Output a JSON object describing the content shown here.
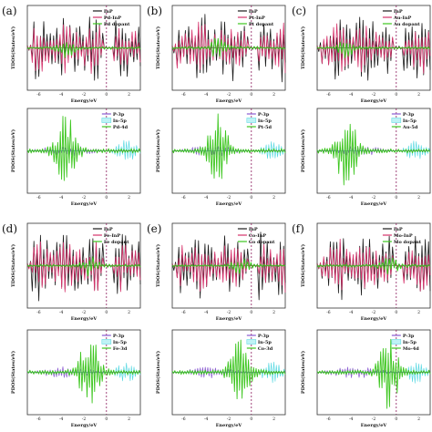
{
  "colors": {
    "black": "#1a1a1a",
    "pink": "#d6336c",
    "green": "#3cc61e",
    "purple": "#8a5ad1",
    "cyan": "#4fd6e0",
    "cyanFill": "#bff2f5",
    "dash": "#8b1a5c"
  },
  "common": {
    "tdos_ylabel": "TDOS(States/eV)",
    "pdos_ylabel": "PDOS(States/eV)",
    "xlabel": "Energy/eV",
    "xticks": [
      "-6",
      "-4",
      "-2",
      "0",
      "2"
    ]
  },
  "panels": [
    {
      "letter": "(a)",
      "tdos_legend": [
        "InP",
        "Pd-InP",
        "Pd dopant"
      ],
      "pdos_legend": [
        "P-3p",
        "In-5p",
        "Pd-4d"
      ],
      "chart_data": {
        "type": "line",
        "peak_positions_eV": {
          "dopant": -3.6
        },
        "xlim": [
          -7,
          3
        ]
      }
    },
    {
      "letter": "(b)",
      "tdos_legend": [
        "InP",
        "Pt-InP",
        "Pt dopant"
      ],
      "pdos_legend": [
        "P-3p",
        "In-5p",
        "Pt-5d"
      ],
      "chart_data": {
        "type": "line",
        "peak_positions_eV": {
          "dopant": -3.0
        },
        "xlim": [
          -7,
          3
        ]
      }
    },
    {
      "letter": "(c)",
      "tdos_legend": [
        "InP",
        "Au-InP",
        "Au dopant"
      ],
      "pdos_legend": [
        "P-3p",
        "In-5p",
        "Au-5d"
      ],
      "chart_data": {
        "type": "line",
        "peak_positions_eV": {
          "dopant": -4.4
        },
        "xlim": [
          -7,
          3
        ]
      }
    },
    {
      "letter": "(d)",
      "tdos_legend": [
        "InP",
        "Fe-InP",
        "Fe dopant"
      ],
      "pdos_legend": [
        "P-3p",
        "In-5p",
        "Fe-3d"
      ],
      "chart_data": {
        "type": "line",
        "peak_positions_eV": {
          "dopant": -1.5
        },
        "xlim": [
          -7,
          3
        ]
      }
    },
    {
      "letter": "(e)",
      "tdos_legend": [
        "InP",
        "Co-InP",
        "Co dopant"
      ],
      "pdos_legend": [
        "P-3p",
        "In-5p",
        "Co-3d"
      ],
      "chart_data": {
        "type": "line",
        "peak_positions_eV": {
          "dopant": -1.0
        },
        "xlim": [
          -7,
          3
        ]
      }
    },
    {
      "letter": "(f)",
      "tdos_legend": [
        "InP",
        "Mo-InP",
        "Mo dopant"
      ],
      "pdos_legend": [
        "P-3p",
        "In-5p",
        "Mo-4d"
      ],
      "chart_data": {
        "type": "line",
        "peak_positions_eV": {
          "dopant": -0.6
        },
        "xlim": [
          -7,
          3
        ]
      }
    }
  ]
}
